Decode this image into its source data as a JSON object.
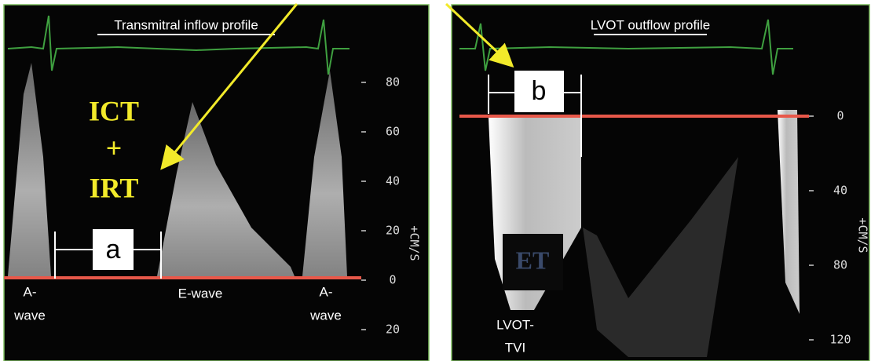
{
  "left_panel": {
    "title": "Transmitral inflow profile",
    "ict": "ICT",
    "plus": "+",
    "irt": "IRT",
    "interval_label": "a",
    "wave_labels": [
      [
        "A-",
        "wave"
      ],
      [
        "E-wave"
      ],
      [
        "A-",
        "wave"
      ]
    ],
    "scale": [
      "80",
      "60",
      "40",
      "20",
      "0",
      "20"
    ],
    "units": "+CM/S"
  },
  "right_panel": {
    "title": "LVOT outflow profile",
    "interval_label": "b",
    "et": "ET",
    "tvi_label": [
      "LVOT-",
      "TVI"
    ],
    "scale": [
      "0",
      "40",
      "80",
      "120"
    ],
    "units": "+CM/S"
  }
}
